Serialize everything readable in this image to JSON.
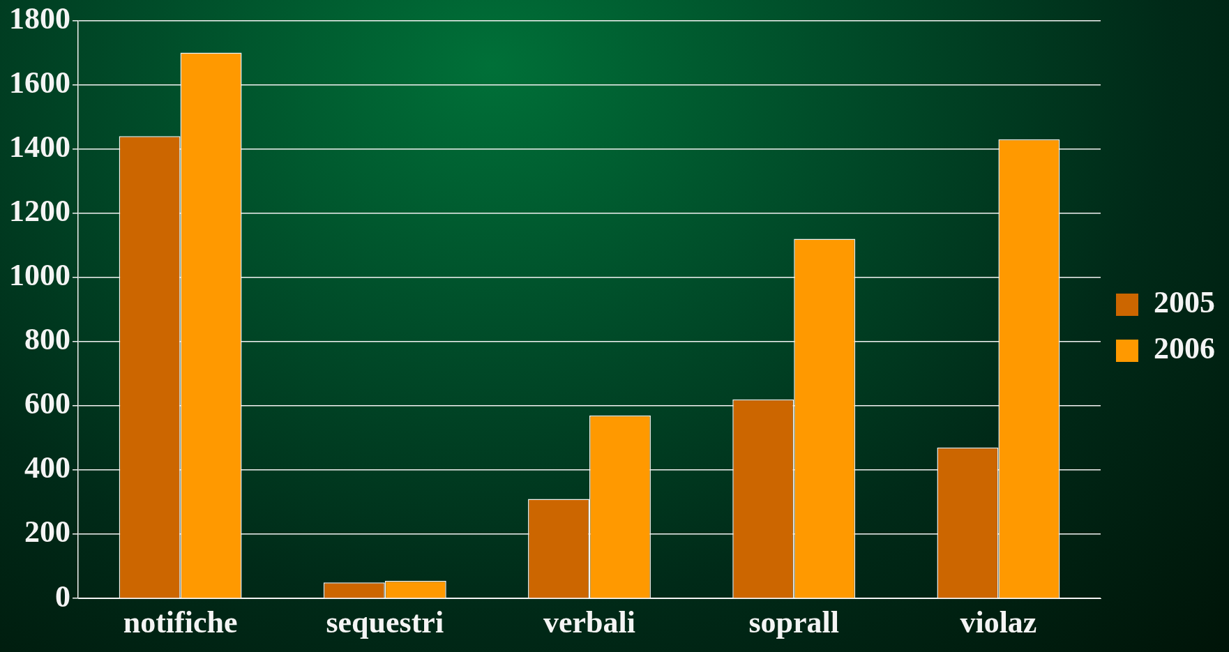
{
  "chart_data": {
    "type": "bar",
    "categories": [
      "notifiche",
      "sequestri",
      "verbali",
      "soprall",
      "violaz"
    ],
    "series": [
      {
        "name": "2005",
        "color": "#cc6600",
        "values": [
          1440,
          50,
          310,
          620,
          470
        ]
      },
      {
        "name": "2006",
        "color": "#ff9900",
        "values": [
          1700,
          55,
          570,
          1120,
          1430
        ]
      }
    ],
    "ylim": [
      0,
      1800
    ],
    "yticks": [
      0,
      200,
      400,
      600,
      800,
      1000,
      1200,
      1400,
      1600,
      1800
    ],
    "grid": "y",
    "legend": "right"
  }
}
